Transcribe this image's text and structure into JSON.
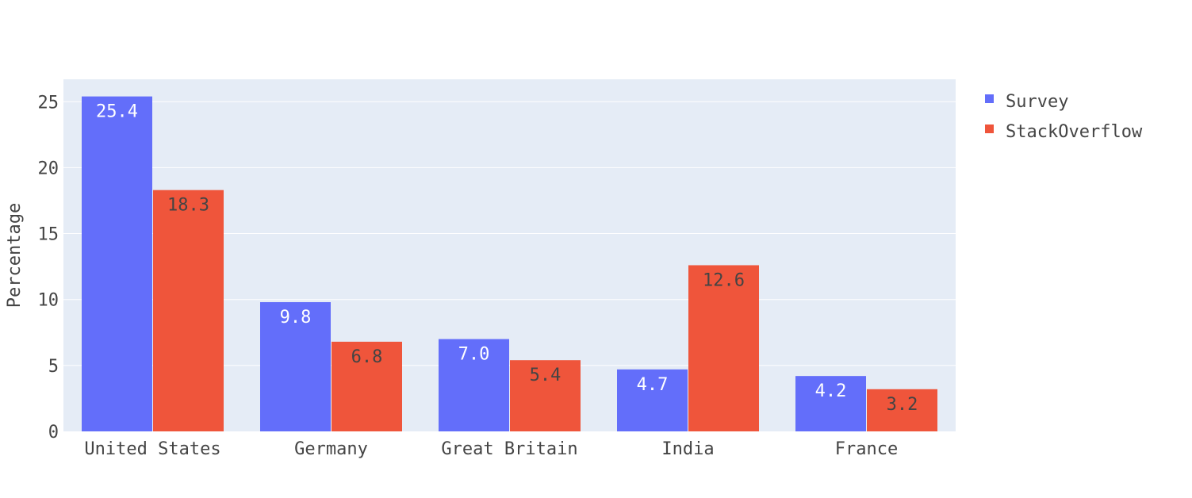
{
  "chart_data": {
    "type": "bar",
    "title": "",
    "xlabel": "",
    "ylabel": "Percentage",
    "categories": [
      "United States",
      "Germany",
      "Great Britain",
      "India",
      "France"
    ],
    "series": [
      {
        "name": "Survey",
        "color": "#636efa",
        "label_color": "#ffffff",
        "values": [
          25.4,
          9.8,
          7.0,
          4.7,
          4.2
        ]
      },
      {
        "name": "StackOverflow",
        "color": "#ef553b",
        "label_color": "#444444",
        "values": [
          18.3,
          6.8,
          5.4,
          12.6,
          3.2
        ]
      }
    ],
    "ylim": [
      0,
      26.7
    ],
    "yticks": [
      0,
      5,
      10,
      15,
      20,
      25
    ],
    "grid": true,
    "legend": "top-right, outside plot",
    "plot_background": "#e5ecf6"
  }
}
